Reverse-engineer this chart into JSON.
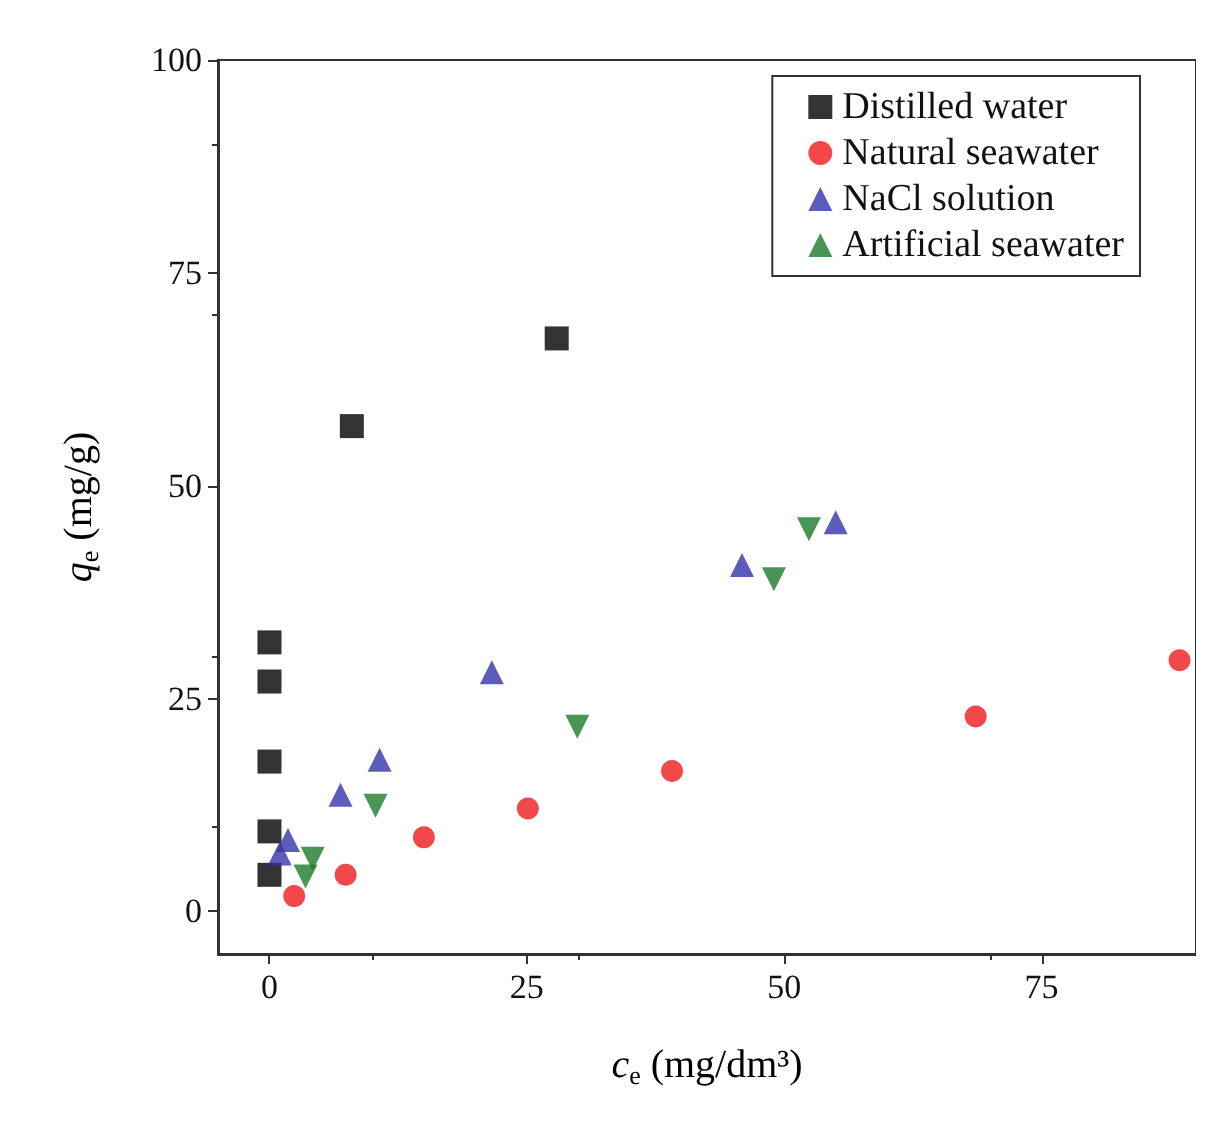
{
  "chart_data": {
    "type": "scatter",
    "xlabel": "c$_{e}$ (mg/dm³)",
    "ylabel": "q$_{e}$ (mg/g)",
    "xlim": [
      -5,
      90
    ],
    "xticks": [
      0,
      25,
      50,
      75
    ],
    "ylim": [
      -5,
      100
    ],
    "yticks": [
      0,
      25,
      50,
      75,
      100
    ],
    "grid": false,
    "legend": "top right",
    "series": [
      {
        "name": "Distilled water",
        "color": "#000000",
        "marker": "square",
        "x": [
          0,
          0,
          0,
          0,
          0,
          8,
          27.9
        ],
        "values": [
          4.3,
          9.4,
          17.6,
          27,
          31.6,
          57,
          67.3
        ]
      },
      {
        "name": "Natural seawater",
        "color": "#ee1c1c",
        "marker": "circle",
        "x": [
          2.4,
          7.4,
          15,
          25.1,
          39.1,
          68.6,
          88.4
        ],
        "values": [
          1.8,
          4.3,
          8.7,
          12.1,
          16.5,
          22.9,
          29.5
        ]
      },
      {
        "name": "NaCl solution",
        "color": "#3333aa",
        "marker": "triangle",
        "x": [
          1,
          1.8,
          6.9,
          10.7,
          21.6,
          45.9,
          55
        ],
        "values": [
          6.8,
          8.4,
          13.7,
          17.8,
          28.1,
          40.7,
          45.7
        ]
      },
      {
        "name": "Artificial seawater",
        "color": "#1a7a2a",
        "marker": "triangle-down",
        "x": [
          3.5,
          4.2,
          10.3,
          29.9,
          49,
          52.4
        ],
        "values": [
          4.1,
          6.2,
          12.4,
          21.7,
          39,
          44.9
        ]
      }
    ]
  }
}
